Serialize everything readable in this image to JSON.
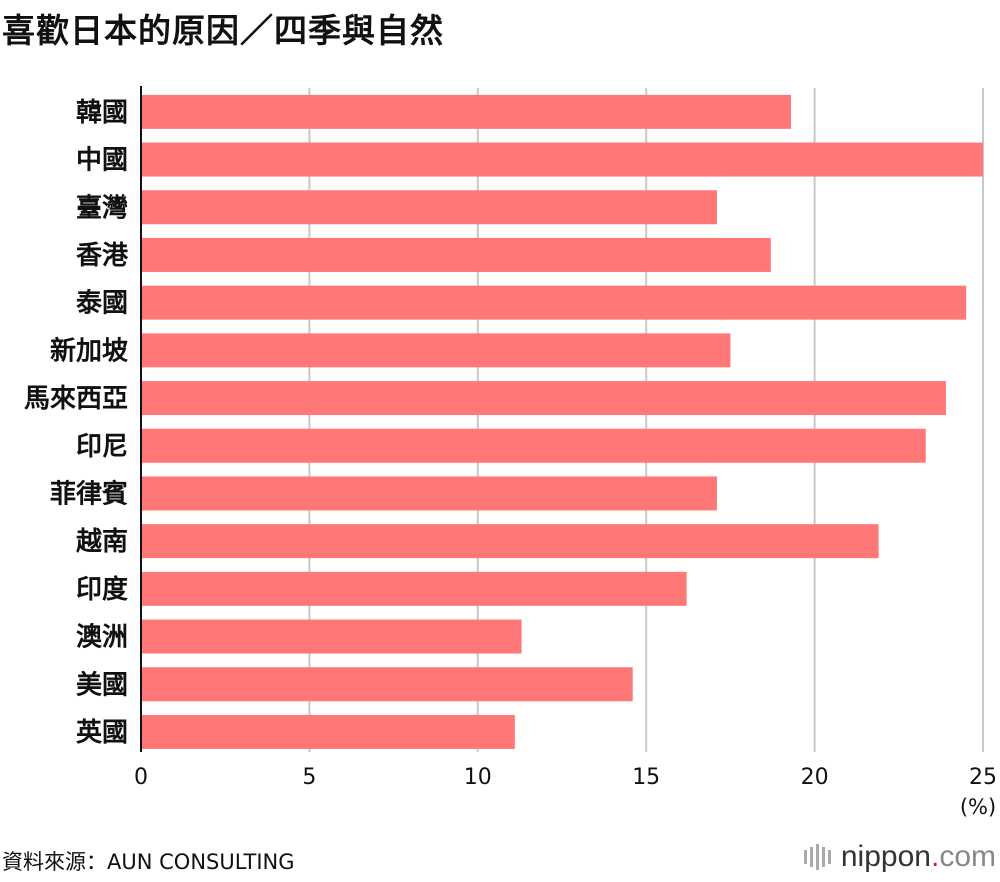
{
  "title": "喜歡日本的原因／四季與自然",
  "source": "資料來源：AUN CONSULTING",
  "logo": {
    "name": "nippon",
    "dot": ".",
    "suffix": "com"
  },
  "colors": {
    "bar": "#ff7777",
    "grid": "#c8c8c8",
    "axis": "#111111"
  },
  "chart_data": {
    "type": "bar",
    "orientation": "horizontal",
    "categories": [
      "韓國",
      "中國",
      "臺灣",
      "香港",
      "泰國",
      "新加坡",
      "馬來西亞",
      "印尼",
      "菲律賓",
      "越南",
      "印度",
      "澳洲",
      "美國",
      "英國"
    ],
    "values": [
      19.3,
      25.0,
      17.1,
      18.7,
      24.5,
      17.5,
      23.9,
      23.3,
      17.1,
      21.9,
      16.2,
      11.3,
      14.6,
      11.1
    ],
    "xlim": [
      0,
      25
    ],
    "xticks": [
      0,
      5,
      10,
      15,
      20,
      25
    ],
    "xunit": "(%)",
    "grid": true
  }
}
